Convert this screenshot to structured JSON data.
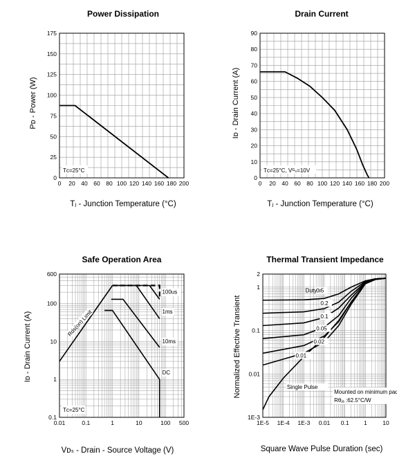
{
  "chart_data": [
    {
      "type": "line",
      "title": "Power Dissipation",
      "xlabel": "Tⱼ - Junction Temperature (°C)",
      "ylabel": "Pᴅ - Power (W)",
      "xlim": [
        0,
        200
      ],
      "ylim": [
        0,
        175
      ],
      "x_ticks": [
        "0",
        "20",
        "40",
        "60",
        "80",
        "100",
        "120",
        "140",
        "160",
        "180",
        "200"
      ],
      "y_ticks": [
        "0",
        "25",
        "50",
        "75",
        "100",
        "125",
        "150",
        "175"
      ],
      "grid": true,
      "annotation": "Tᴄ=25°C",
      "series": [
        {
          "x": [
            0,
            25,
            175
          ],
          "y": [
            87.5,
            87.5,
            0
          ]
        }
      ]
    },
    {
      "type": "line",
      "title": "Drain Current",
      "xlabel": "Tⱼ - Junction Temperature (°C)",
      "ylabel": "Iᴅ - Drain Current (A)",
      "xlim": [
        0,
        200
      ],
      "ylim": [
        0,
        90
      ],
      "x_ticks": [
        "0",
        "20",
        "40",
        "60",
        "80",
        "100",
        "120",
        "140",
        "160",
        "180",
        "200"
      ],
      "y_ticks": [
        "0",
        "10",
        "20",
        "30",
        "40",
        "50",
        "60",
        "70",
        "80",
        "90"
      ],
      "grid": true,
      "annotation": "Tᴄ=25°C, Vᴳₛ=10V",
      "series": [
        {
          "x": [
            0,
            40,
            60,
            80,
            100,
            120,
            140,
            155,
            165,
            172,
            175
          ],
          "y": [
            66,
            66,
            62,
            57,
            50,
            42,
            30,
            18,
            8,
            2,
            0
          ]
        }
      ]
    },
    {
      "type": "line",
      "title": "Safe Operation Area",
      "xlabel": "Vᴅₛ - Drain - Source Voltage (V)",
      "ylabel": "Iᴅ - Drain Current (A)",
      "x_scale": "log",
      "y_scale": "log",
      "xlim": [
        0.01,
        500
      ],
      "ylim": [
        0.1,
        600
      ],
      "x_ticks": [
        "0.01",
        "0.1",
        "1",
        "10",
        "100",
        "500"
      ],
      "y_ticks": [
        "0.1",
        "1",
        "10",
        "100",
        "600"
      ],
      "grid": true,
      "annotation": "Tᴄ=25°C",
      "region_label": "Rds(on) Limit",
      "series": [
        {
          "name": "Rds(on) Limit",
          "x": [
            0.01,
            0.5,
            1.0
          ],
          "y": [
            3,
            150,
            300
          ]
        },
        {
          "name": "DC",
          "x": [
            0.5,
            1.0,
            60,
            60
          ],
          "y": [
            66,
            66,
            1,
            0.1
          ]
        },
        {
          "name": "10ms",
          "x": [
            0.9,
            2.5,
            60
          ],
          "y": [
            130,
            130,
            7
          ]
        },
        {
          "name": "1ms",
          "x": [
            1.0,
            8,
            60
          ],
          "y": [
            300,
            300,
            40
          ]
        },
        {
          "name": "100us",
          "x": [
            1.0,
            25,
            60
          ],
          "y": [
            300,
            300,
            130
          ]
        },
        {
          "name": "",
          "dashed": true,
          "x": [
            1.0,
            60,
            60
          ],
          "y": [
            300,
            300,
            130
          ]
        }
      ],
      "labels": [
        "100us",
        "1ms",
        "10ms",
        "DC"
      ]
    },
    {
      "type": "line",
      "title": "Thermal Transient Impedance",
      "xlabel": "Square Wave Pulse Duration (sec)",
      "ylabel": "Normalized Effective Transient",
      "x_scale": "log",
      "y_scale": "log",
      "xlim": [
        1e-05,
        10
      ],
      "ylim": [
        0.001,
        2
      ],
      "x_ticks": [
        "1E-5",
        "1E-4",
        "1E-3",
        "0.01",
        "0.1",
        "1",
        "10"
      ],
      "y_ticks": [
        "1E-3",
        "0.01",
        "0.1",
        "1",
        "2"
      ],
      "grid": true,
      "annotation_lines": [
        "Mounted on minimum pad",
        "Rθⱼₐ :62.5°C/W"
      ],
      "duty_prefix": "Duty = ",
      "labels": [
        "0.5",
        "0.2",
        "0.1",
        "0.05",
        "0.02",
        "0.01",
        "Single Pulse"
      ],
      "series": [
        {
          "name": "0.5",
          "x": [
            1e-05,
            0.001,
            0.01,
            0.05,
            0.2,
            1,
            3,
            10
          ],
          "y": [
            0.5,
            0.51,
            0.55,
            0.7,
            1.0,
            1.4,
            1.55,
            1.6
          ]
        },
        {
          "name": "0.2",
          "x": [
            1e-05,
            0.001,
            0.01,
            0.05,
            0.2,
            1,
            3,
            10
          ],
          "y": [
            0.25,
            0.27,
            0.32,
            0.45,
            0.8,
            1.35,
            1.55,
            1.6
          ]
        },
        {
          "name": "0.1",
          "x": [
            1e-05,
            0.001,
            0.01,
            0.05,
            0.2,
            1,
            3,
            10
          ],
          "y": [
            0.13,
            0.15,
            0.2,
            0.33,
            0.65,
            1.3,
            1.55,
            1.6
          ]
        },
        {
          "name": "0.05",
          "x": [
            1e-05,
            0.001,
            0.01,
            0.05,
            0.2,
            1,
            3,
            10
          ],
          "y": [
            0.065,
            0.08,
            0.12,
            0.22,
            0.55,
            1.25,
            1.55,
            1.6
          ]
        },
        {
          "name": "0.02",
          "x": [
            1e-05,
            0.001,
            0.01,
            0.05,
            0.2,
            1,
            3,
            10
          ],
          "y": [
            0.03,
            0.045,
            0.075,
            0.16,
            0.45,
            1.2,
            1.5,
            1.6
          ]
        },
        {
          "name": "0.01",
          "x": [
            1e-05,
            0.001,
            0.01,
            0.05,
            0.2,
            1,
            3,
            10
          ],
          "y": [
            0.016,
            0.03,
            0.055,
            0.13,
            0.4,
            1.2,
            1.5,
            1.6
          ]
        },
        {
          "name": "Single Pulse",
          "x": [
            1e-05,
            2e-05,
            0.0001,
            0.001,
            0.01,
            0.05,
            0.2,
            1,
            3,
            10
          ],
          "y": [
            0.0015,
            0.003,
            0.008,
            0.025,
            0.07,
            0.17,
            0.45,
            1.2,
            1.5,
            1.6
          ]
        }
      ]
    }
  ]
}
